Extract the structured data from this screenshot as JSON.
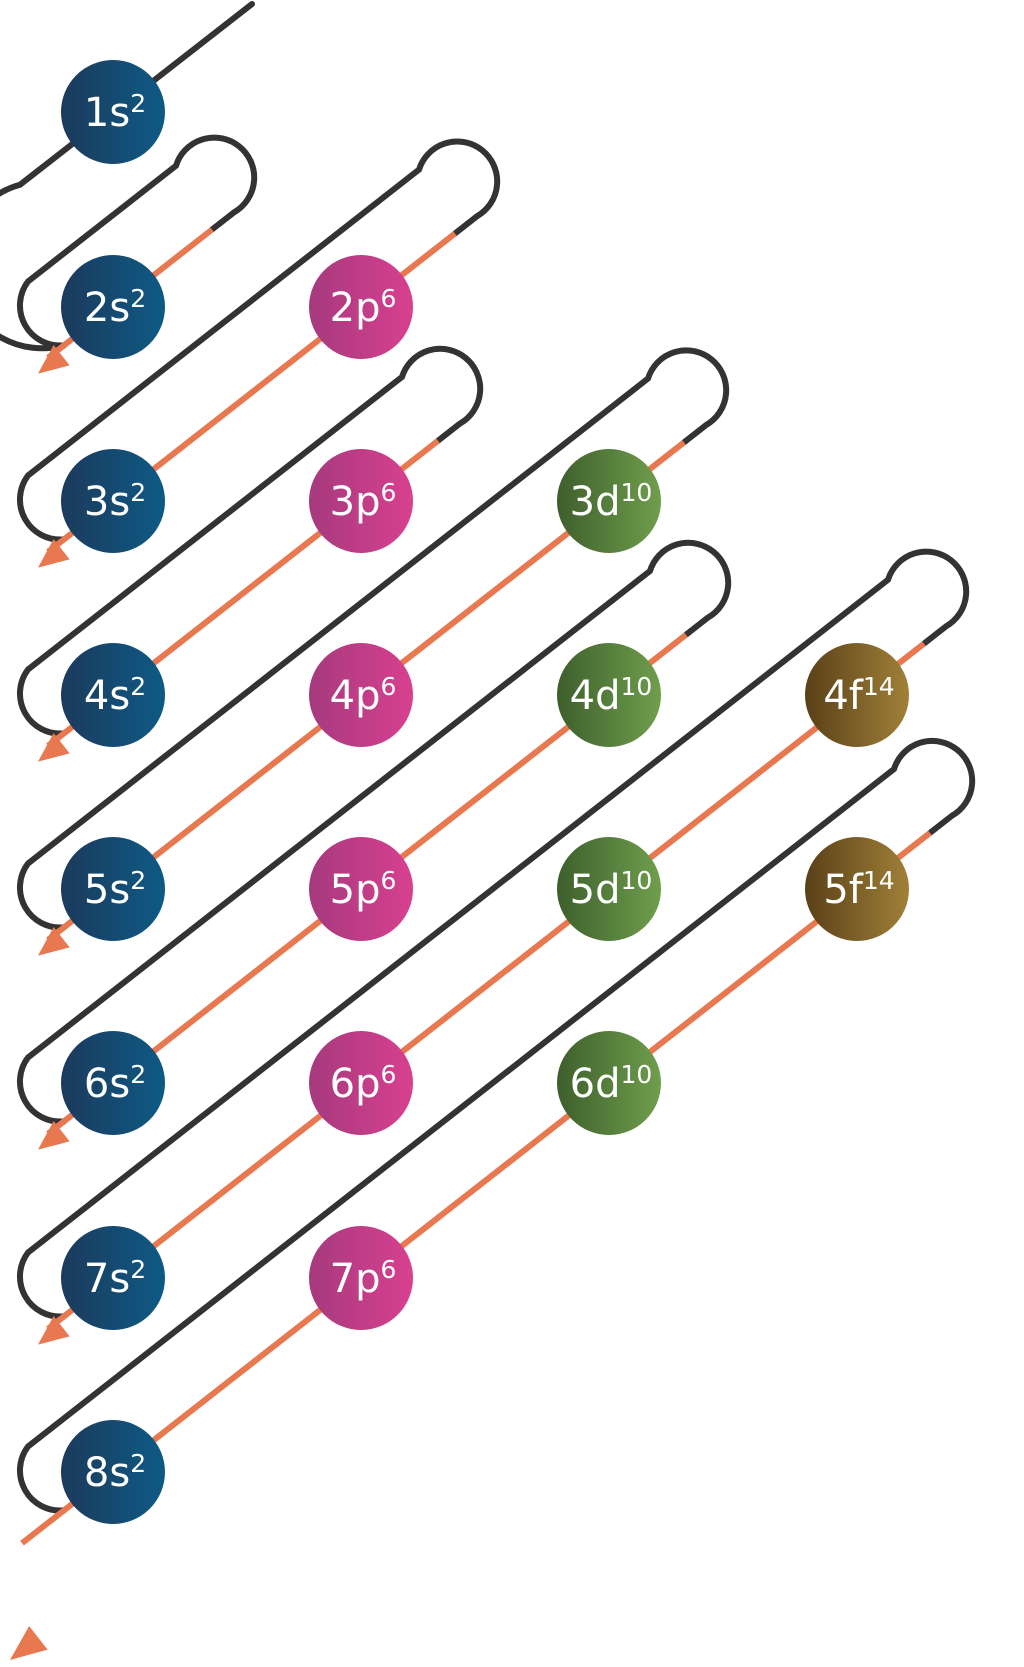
{
  "colors": {
    "path_dark": "#333333",
    "path_orange": "#e8784f",
    "label_text": "#ffffff",
    "s_from": "#1c3a5c",
    "s_to": "#0e5a85",
    "p_from": "#a63a7e",
    "p_to": "#d8408f",
    "d_from": "#3e5f2d",
    "d_to": "#6f9e4c",
    "f_from": "#5a4018",
    "f_to": "#a08038"
  },
  "orbitals": [
    {
      "id": "1s",
      "label": "1s",
      "sup": "2",
      "kind": "s"
    },
    {
      "id": "2s",
      "label": "2s",
      "sup": "2",
      "kind": "s"
    },
    {
      "id": "2p",
      "label": "2p",
      "sup": "6",
      "kind": "p"
    },
    {
      "id": "3s",
      "label": "3s",
      "sup": "2",
      "kind": "s"
    },
    {
      "id": "3p",
      "label": "3p",
      "sup": "6",
      "kind": "p"
    },
    {
      "id": "3d",
      "label": "3d",
      "sup": "10",
      "kind": "d"
    },
    {
      "id": "4s",
      "label": "4s",
      "sup": "2",
      "kind": "s"
    },
    {
      "id": "4p",
      "label": "4p",
      "sup": "6",
      "kind": "p"
    },
    {
      "id": "4d",
      "label": "4d",
      "sup": "10",
      "kind": "d"
    },
    {
      "id": "4f",
      "label": "4f",
      "sup": "14",
      "kind": "f"
    },
    {
      "id": "5s",
      "label": "5s",
      "sup": "2",
      "kind": "s"
    },
    {
      "id": "5p",
      "label": "5p",
      "sup": "6",
      "kind": "p"
    },
    {
      "id": "5d",
      "label": "5d",
      "sup": "10",
      "kind": "d"
    },
    {
      "id": "5f",
      "label": "5f",
      "sup": "14",
      "kind": "f"
    },
    {
      "id": "6s",
      "label": "6s",
      "sup": "2",
      "kind": "s"
    },
    {
      "id": "6p",
      "label": "6p",
      "sup": "6",
      "kind": "p"
    },
    {
      "id": "6d",
      "label": "6d",
      "sup": "10",
      "kind": "d"
    },
    {
      "id": "7s",
      "label": "7s",
      "sup": "2",
      "kind": "s"
    },
    {
      "id": "7p",
      "label": "7p",
      "sup": "6",
      "kind": "p"
    },
    {
      "id": "8s",
      "label": "8s",
      "sup": "2",
      "kind": "s"
    }
  ]
}
